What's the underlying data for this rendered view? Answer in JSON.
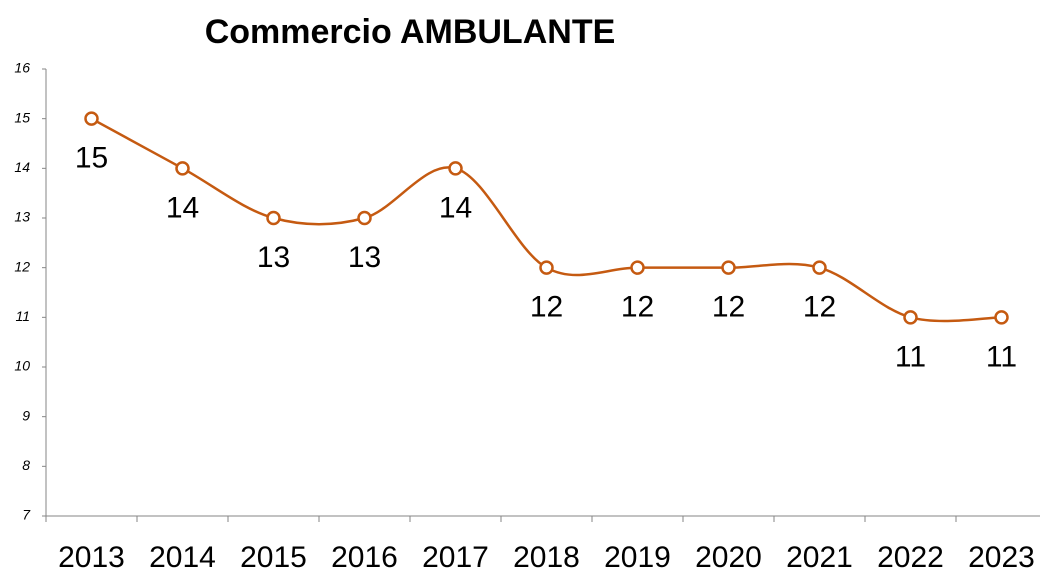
{
  "chart_data": {
    "type": "line",
    "title": "Commercio AMBULANTE",
    "categories": [
      "2013",
      "2014",
      "2015",
      "2016",
      "2017",
      "2018",
      "2019",
      "2020",
      "2021",
      "2022",
      "2023"
    ],
    "series": [
      {
        "name": "Commercio AMBULANTE",
        "color": "#c55a11",
        "values": [
          15,
          14,
          13,
          13,
          14,
          12,
          12,
          12,
          12,
          11,
          11
        ]
      }
    ],
    "ylim": [
      7,
      16
    ],
    "yticks": [
      7,
      8,
      9,
      10,
      11,
      12,
      13,
      14,
      15,
      16
    ],
    "grid": false,
    "smooth": true
  }
}
